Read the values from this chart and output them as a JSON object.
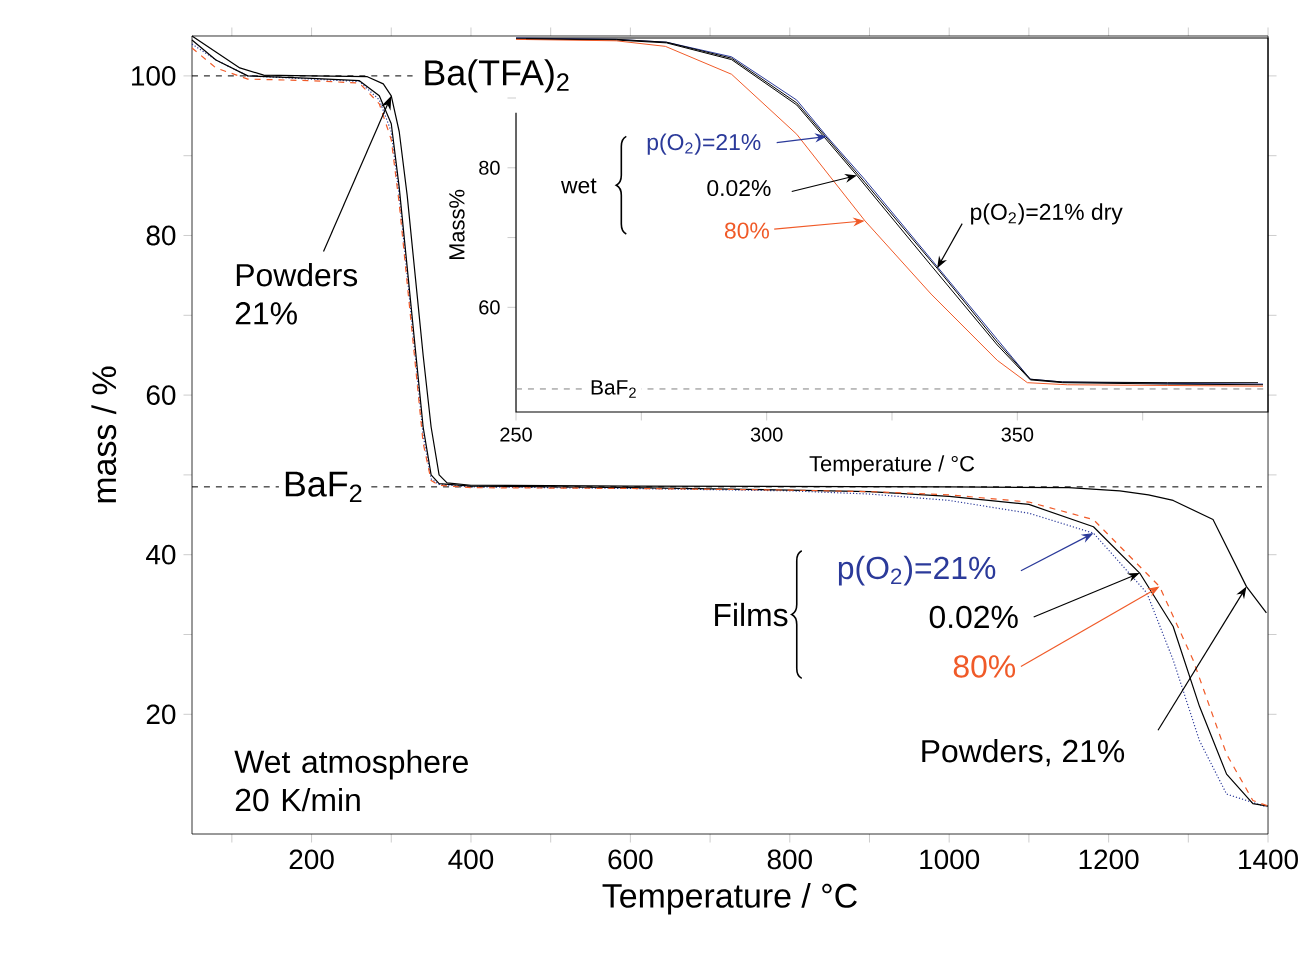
{
  "chart_data": [
    {
      "type": "line",
      "xlabel": "Temperature / °C",
      "ylabel": "mass / %",
      "xlim": [
        50,
        1400
      ],
      "ylim": [
        5,
        105
      ],
      "legend": "bottom right",
      "xticks": [
        {
          "value": 100,
          "label": null
        },
        200,
        {
          "value": 300,
          "label": null
        },
        400,
        {
          "value": 500,
          "label": null
        },
        600,
        {
          "value": 700,
          "label": null
        },
        800,
        {
          "value": 900,
          "label": null
        },
        1000,
        {
          "value": 1100,
          "label": null
        },
        1200,
        {
          "value": 1300,
          "label": null
        },
        1400
      ],
      "yticks": [
        20,
        {
          "value": 30,
          "label": null
        },
        40,
        {
          "value": 50,
          "label": null
        },
        60,
        {
          "value": 70,
          "label": null
        },
        80,
        {
          "value": 90,
          "label": null
        },
        100
      ],
      "series": [
        {
          "name": "p(O$_{2}$)=21%",
          "color": "#2b3a9a",
          "line_style": "dotted",
          "x": [
            50,
            80,
            120,
            200,
            260,
            285,
            300,
            310,
            320,
            330,
            340,
            350,
            360,
            400,
            600,
            800,
            900,
            1000,
            1100,
            1181,
            1248,
            1281,
            1314,
            1348,
            1398
          ],
          "values": [
            104,
            102,
            100,
            99.6,
            99.3,
            97,
            93,
            85,
            75,
            65,
            55,
            49.5,
            48.8,
            48.5,
            48.3,
            48,
            47.6,
            46.8,
            45.2,
            42.7,
            35.2,
            26.8,
            16.7,
            10,
            8.4
          ]
        },
        {
          "name": "0.02%",
          "color": "#000000",
          "line_style": "solid",
          "x": [
            50,
            80,
            120,
            200,
            260,
            285,
            300,
            310,
            320,
            330,
            340,
            350,
            360,
            400,
            600,
            800,
            900,
            1000,
            1100,
            1181,
            1239,
            1281,
            1314,
            1348,
            1381,
            1400
          ],
          "values": [
            104.5,
            102,
            100,
            99.7,
            99.4,
            97.5,
            94,
            86,
            76,
            66,
            56,
            50,
            48.9,
            48.6,
            48.4,
            48.1,
            47.9,
            47.3,
            46.3,
            43.5,
            37.7,
            31,
            21,
            12.5,
            8.8,
            8.5
          ]
        },
        {
          "name": "80%",
          "color": "#f05a28",
          "line_style": "dashed",
          "x": [
            50,
            80,
            120,
            200,
            260,
            285,
            300,
            310,
            320,
            330,
            340,
            350,
            360,
            400,
            600,
            800,
            900,
            1000,
            1100,
            1181,
            1264,
            1306,
            1348,
            1381,
            1400
          ],
          "values": [
            103.5,
            101,
            99.6,
            99.4,
            99.1,
            96.5,
            92,
            84,
            74,
            64,
            54,
            49.3,
            48.7,
            48.4,
            48.3,
            48.1,
            47.9,
            47.5,
            46.6,
            44.4,
            36,
            26.8,
            15,
            9.2,
            8.5
          ]
        },
        {
          "name": "Powders, 21%",
          "color": "#000000",
          "line_style": "solid",
          "x": [
            50,
            80,
            110,
            140,
            200,
            270,
            290,
            300,
            310,
            320,
            330,
            340,
            350,
            360,
            370,
            400,
            600,
            1000,
            1150,
            1214,
            1250,
            1281,
            1331,
            1373,
            1398
          ],
          "values": [
            105,
            103,
            101,
            100.1,
            100,
            99.9,
            99,
            97.5,
            93,
            85,
            75,
            65,
            56,
            50,
            49,
            48.7,
            48.6,
            48.5,
            48.4,
            48,
            47.5,
            46.8,
            44.4,
            36,
            32.7
          ]
        }
      ],
      "ref_lines": [
        {
          "axis": "y",
          "value": 100,
          "label": "Ba(TFA)$_{2}$",
          "color": "#000000",
          "line_style": "dashed"
        },
        {
          "axis": "y",
          "value": 48.5,
          "label": "BaF$_{2}$",
          "color": "#000000",
          "line_style": "dashed"
        }
      ],
      "annotations": [
        {
          "text": "Films"
        },
        {
          "text": "Powders 21%",
          "x": 300,
          "y": 97.5
        },
        {
          "text": "Wet atmosphere 20 K/min"
        }
      ]
    },
    {
      "type": "line",
      "xlabel": "Temperature / °C",
      "ylabel": "Mass%",
      "xlim": [
        250,
        400
      ],
      "ylim": [
        45,
        98.6
      ],
      "legend": "top left",
      "xticks": [
        250,
        {
          "value": 275,
          "label": null
        },
        300,
        {
          "value": 325,
          "label": null
        },
        350,
        {
          "value": 375,
          "label": null
        }
      ],
      "yticks": [
        60,
        {
          "value": 70,
          "label": null
        },
        80,
        {
          "value": 90,
          "label": null
        }
      ],
      "series": [
        {
          "name": "p(O$_{2}$)=21%",
          "color": "#2b3a9a",
          "line_style": "solid",
          "x": [
            250,
            270,
            280,
            293,
            306,
            312,
            319.6,
            332.8,
            346,
            352.6,
            359,
            380,
            399
          ],
          "values": [
            98.6,
            98.4,
            98,
            95.9,
            89.7,
            84.5,
            78.3,
            66.9,
            55.4,
            49.7,
            49.3,
            49.1,
            49
          ]
        },
        {
          "name": "0.02%",
          "color": "#000000",
          "line_style": "solid",
          "x": [
            250,
            270,
            280,
            293,
            306,
            318,
            332.8,
            346,
            352.6,
            359,
            380,
            399
          ],
          "values": [
            98.5,
            98.3,
            97.9,
            95.5,
            89,
            78.9,
            66,
            54.6,
            49.6,
            49.2,
            49,
            48.9
          ]
        },
        {
          "name": "80%",
          "color": "#f05a28",
          "line_style": "solid",
          "x": [
            250,
            270,
            279.8,
            293,
            306,
            319.6,
            332.8,
            346,
            352,
            360,
            380,
            399
          ],
          "values": [
            98.4,
            98.2,
            97.4,
            93.4,
            84.8,
            72.4,
            61.9,
            52.4,
            49.2,
            48.9,
            48.8,
            48.7
          ]
        },
        {
          "name": "p(O$_{2}$)=21%  dry",
          "color": "#000000",
          "line_style": "solid",
          "x": [
            252,
            270,
            280,
            293,
            306,
            319.6,
            334,
            346,
            352.6,
            359,
            380,
            398
          ],
          "values": [
            98.5,
            98.4,
            98,
            95.7,
            89.3,
            77.9,
            65.6,
            55,
            49.7,
            49.3,
            49.2,
            49.2
          ]
        }
      ],
      "ref_lines": [
        {
          "axis": "y",
          "value": 48.3,
          "label": "BaF$_{2}$",
          "color": "#808080",
          "line_style": "dashed"
        }
      ],
      "annotations": [
        {
          "text": "wet"
        }
      ]
    }
  ]
}
